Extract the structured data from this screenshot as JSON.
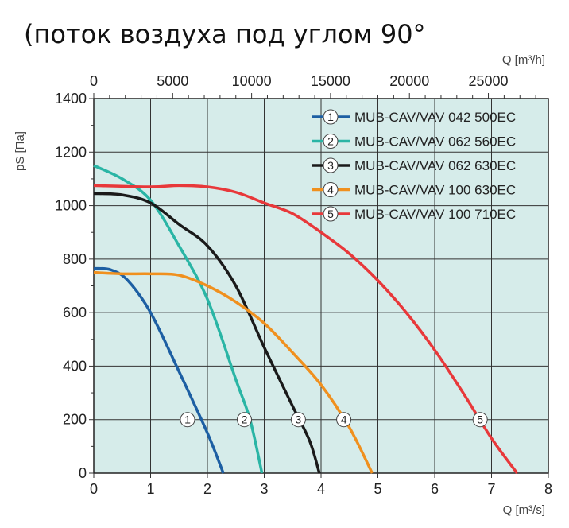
{
  "heading": "(поток воздуха под углом 90°",
  "chart_data": {
    "type": "line",
    "xlabel": "Q [m³/s]",
    "x2label": "Q [m³/h]",
    "ylabel": "pS [Па]",
    "xlim": [
      0,
      8
    ],
    "ylim": [
      0,
      1400
    ],
    "x_ticks": [
      "0",
      "1",
      "2",
      "3",
      "4",
      "5",
      "6",
      "7",
      "8"
    ],
    "x2_ticks": [
      "0",
      "5000",
      "10000",
      "15000",
      "20000",
      "25000"
    ],
    "y_ticks": [
      "0",
      "200",
      "400",
      "600",
      "800",
      "1000",
      "1200",
      "1400"
    ],
    "grid": true,
    "legend_position": "top-right",
    "background": "#d6ecea",
    "series": [
      {
        "id": "1",
        "name": "MUB-CAV/VAV 042 500EC",
        "color": "#1d5fa3",
        "label_x": 1.65,
        "points": [
          [
            0,
            765
          ],
          [
            0.3,
            760
          ],
          [
            0.6,
            720
          ],
          [
            1.0,
            600
          ],
          [
            1.5,
            380
          ],
          [
            2.0,
            150
          ],
          [
            2.28,
            0
          ]
        ]
      },
      {
        "id": "2",
        "name": "MUB-CAV/VAV 062 560EC",
        "color": "#2ab5a5",
        "label_x": 2.65,
        "points": [
          [
            0,
            1150
          ],
          [
            0.5,
            1100
          ],
          [
            1.0,
            1020
          ],
          [
            1.5,
            850
          ],
          [
            2.0,
            650
          ],
          [
            2.5,
            350
          ],
          [
            2.75,
            200
          ],
          [
            2.96,
            0
          ]
        ]
      },
      {
        "id": "3",
        "name": "MUB-CAV/VAV 062 630EC",
        "color": "#1a1a1a",
        "label_x": 3.6,
        "points": [
          [
            0,
            1045
          ],
          [
            0.5,
            1040
          ],
          [
            1.0,
            1010
          ],
          [
            1.5,
            930
          ],
          [
            2.0,
            850
          ],
          [
            2.5,
            700
          ],
          [
            3.0,
            470
          ],
          [
            3.5,
            250
          ],
          [
            3.8,
            120
          ],
          [
            3.97,
            0
          ]
        ]
      },
      {
        "id": "4",
        "name": "MUB-CAV/VAV 100 630EC",
        "color": "#f0901e",
        "label_x": 4.4,
        "points": [
          [
            0,
            750
          ],
          [
            0.5,
            745
          ],
          [
            1,
            745
          ],
          [
            1.5,
            740
          ],
          [
            2,
            700
          ],
          [
            2.5,
            640
          ],
          [
            3,
            560
          ],
          [
            3.5,
            450
          ],
          [
            4,
            330
          ],
          [
            4.5,
            170
          ],
          [
            4.9,
            0
          ]
        ]
      },
      {
        "id": "5",
        "name": "MUB-CAV/VAV 100 710EC",
        "color": "#e8383a",
        "label_x": 6.8,
        "points": [
          [
            0,
            1075
          ],
          [
            1,
            1070
          ],
          [
            1.5,
            1075
          ],
          [
            2,
            1070
          ],
          [
            2.5,
            1050
          ],
          [
            3,
            1010
          ],
          [
            3.5,
            970
          ],
          [
            4,
            900
          ],
          [
            4.5,
            820
          ],
          [
            5,
            720
          ],
          [
            5.5,
            600
          ],
          [
            6,
            460
          ],
          [
            6.5,
            300
          ],
          [
            7,
            130
          ],
          [
            7.45,
            0
          ]
        ]
      }
    ]
  }
}
